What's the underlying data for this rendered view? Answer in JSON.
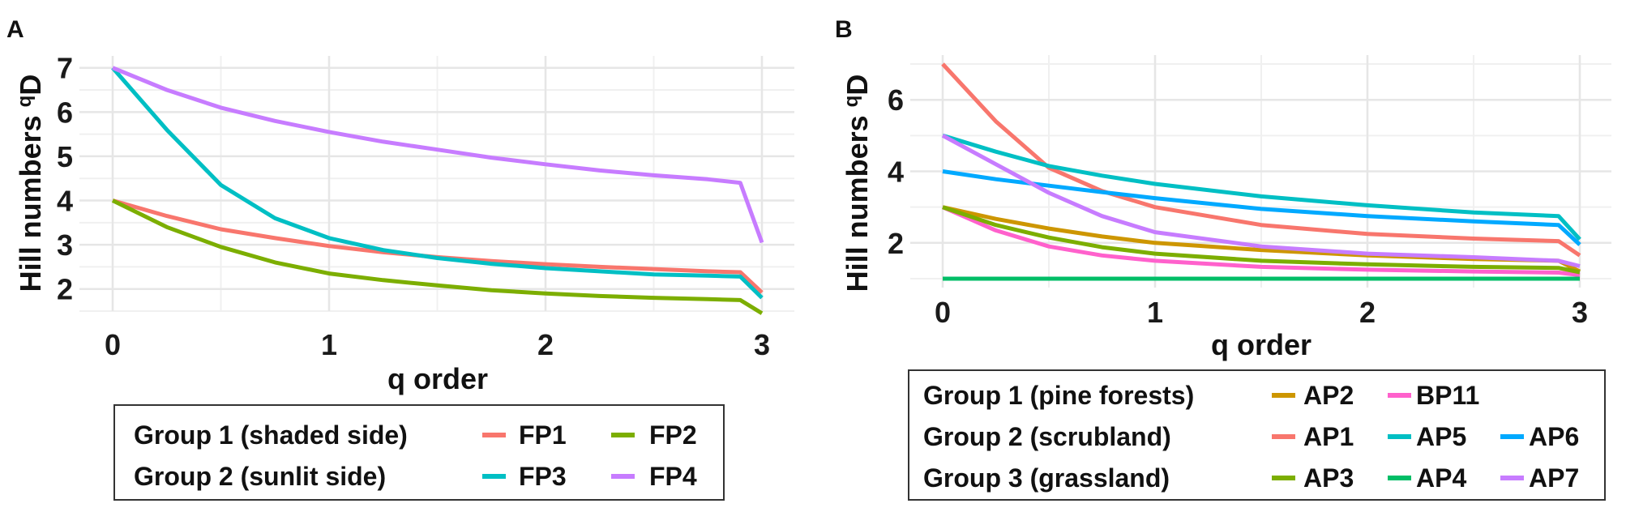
{
  "chart_data": [
    {
      "panel": "A",
      "type": "line",
      "xlabel": "q order",
      "ylabel": "Hill numbers",
      "ylabel_sup": "q",
      "ylabel_end": "D",
      "xlim": [
        0,
        3
      ],
      "ylim": [
        1.5,
        7.27
      ],
      "xticks": [
        "0",
        "1",
        "2",
        "3"
      ],
      "yticks": [
        "2",
        "3",
        "4",
        "5",
        "6",
        "7"
      ],
      "grid": true,
      "legend_position": "bottom",
      "x": [
        0,
        0.25,
        0.5,
        0.75,
        1,
        1.25,
        1.5,
        1.75,
        2,
        2.25,
        2.5,
        2.75,
        2.9,
        3
      ],
      "legend_groups": [
        "Group 1 (shaded side)",
        "Group 2 (sunlit side)"
      ],
      "series": [
        {
          "name": "FP1",
          "group": 0,
          "color": "#F8766D",
          "values": [
            4,
            3.65,
            3.35,
            3.15,
            2.97,
            2.83,
            2.72,
            2.63,
            2.56,
            2.5,
            2.45,
            2.4,
            2.38,
            1.92
          ]
        },
        {
          "name": "FP2",
          "group": 0,
          "color": "#7CAE00",
          "values": [
            4,
            3.4,
            2.95,
            2.6,
            2.35,
            2.2,
            2.08,
            1.97,
            1.9,
            1.84,
            1.8,
            1.77,
            1.75,
            1.45
          ]
        },
        {
          "name": "FP3",
          "group": 1,
          "color": "#00BFC4",
          "values": [
            7,
            5.6,
            4.35,
            3.6,
            3.15,
            2.88,
            2.7,
            2.57,
            2.47,
            2.4,
            2.33,
            2.3,
            2.28,
            1.8
          ]
        },
        {
          "name": "FP4",
          "group": 1,
          "color": "#C77CFF",
          "values": [
            7,
            6.5,
            6.1,
            5.8,
            5.55,
            5.33,
            5.15,
            4.97,
            4.82,
            4.68,
            4.57,
            4.48,
            4.4,
            3.05
          ]
        }
      ]
    },
    {
      "panel": "B",
      "type": "line",
      "xlabel": "q order",
      "ylabel": "Hill numbers",
      "ylabel_sup": "q",
      "ylabel_end": "D",
      "xlim": [
        0,
        3
      ],
      "ylim": [
        0.75,
        7.25
      ],
      "xticks": [
        "0",
        "1",
        "2",
        "3"
      ],
      "yticks": [
        "2",
        "4",
        "6"
      ],
      "grid": true,
      "legend_position": "bottom",
      "x": [
        0,
        0.25,
        0.5,
        0.75,
        1,
        1.5,
        2,
        2.5,
        2.9,
        3
      ],
      "legend_groups": [
        "Group 1 (pine forests)",
        "Group 2 (scrubland)",
        "Group 3 (grassland)"
      ],
      "series": [
        {
          "name": "AP2",
          "group": 0,
          "color": "#CD9600",
          "values": [
            3,
            2.67,
            2.4,
            2.18,
            2.0,
            1.8,
            1.65,
            1.55,
            1.5,
            1.2
          ]
        },
        {
          "name": "BP11",
          "group": 0,
          "color": "#FF61CC",
          "values": [
            3,
            2.35,
            1.9,
            1.65,
            1.5,
            1.33,
            1.25,
            1.2,
            1.17,
            1.1
          ]
        },
        {
          "name": "AP1",
          "group": 1,
          "color": "#F8766D",
          "values": [
            7,
            5.4,
            4.1,
            3.45,
            3.0,
            2.5,
            2.25,
            2.12,
            2.05,
            1.65
          ]
        },
        {
          "name": "AP5",
          "group": 1,
          "color": "#00BFC4",
          "values": [
            5,
            4.55,
            4.15,
            3.88,
            3.65,
            3.3,
            3.05,
            2.85,
            2.75,
            2.1
          ]
        },
        {
          "name": "AP6",
          "group": 1,
          "color": "#00A9FF",
          "values": [
            4,
            3.78,
            3.6,
            3.42,
            3.25,
            2.95,
            2.75,
            2.6,
            2.5,
            1.95
          ]
        },
        {
          "name": "AP3",
          "group": 2,
          "color": "#7CAE00",
          "values": [
            3,
            2.5,
            2.15,
            1.88,
            1.7,
            1.5,
            1.4,
            1.33,
            1.3,
            1.18
          ]
        },
        {
          "name": "AP4",
          "group": 2,
          "color": "#00BE67",
          "values": [
            1,
            1,
            1,
            1,
            1,
            1,
            1,
            1,
            1,
            1
          ]
        },
        {
          "name": "AP7",
          "group": 2,
          "color": "#C77CFF",
          "values": [
            5,
            4.2,
            3.4,
            2.75,
            2.3,
            1.9,
            1.7,
            1.6,
            1.5,
            1.35
          ]
        }
      ]
    }
  ]
}
